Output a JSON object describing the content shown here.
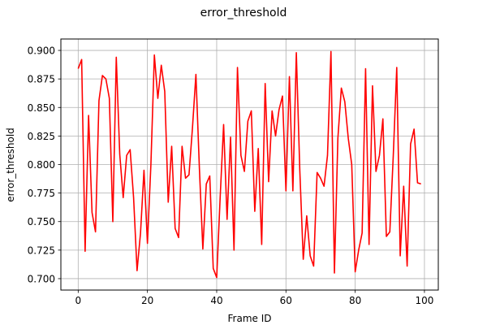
{
  "chart_data": {
    "type": "line",
    "title": "error_threshold",
    "xlabel": "Frame ID",
    "ylabel": "error_threshold",
    "xlim": [
      -5,
      104
    ],
    "ylim": [
      0.69,
      0.91
    ],
    "xticks": [
      0,
      20,
      40,
      60,
      80,
      100
    ],
    "xtick_labels": [
      "0",
      "20",
      "40",
      "60",
      "80",
      "100"
    ],
    "yticks": [
      0.7,
      0.725,
      0.75,
      0.775,
      0.8,
      0.825,
      0.85,
      0.875,
      0.9
    ],
    "ytick_labels": [
      "0.700",
      "0.725",
      "0.750",
      "0.775",
      "0.800",
      "0.825",
      "0.850",
      "0.875",
      "0.900"
    ],
    "grid": true,
    "legend": "none",
    "series": [
      {
        "color": "#ff0000",
        "x": [
          0,
          1,
          2,
          3,
          4,
          5,
          6,
          7,
          8,
          9,
          10,
          11,
          12,
          13,
          14,
          15,
          16,
          17,
          18,
          19,
          20,
          21,
          22,
          23,
          24,
          25,
          26,
          27,
          28,
          29,
          30,
          31,
          32,
          33,
          34,
          35,
          36,
          37,
          38,
          39,
          40,
          41,
          42,
          43,
          44,
          45,
          46,
          47,
          48,
          49,
          50,
          51,
          52,
          53,
          54,
          55,
          56,
          57,
          58,
          59,
          60,
          61,
          62,
          63,
          64,
          65,
          66,
          67,
          68,
          69,
          70,
          71,
          72,
          73,
          74,
          75,
          76,
          77,
          78,
          79,
          80,
          81,
          82,
          83,
          84,
          85,
          86,
          87,
          88,
          89,
          90,
          91,
          92,
          93,
          94,
          95,
          96,
          97,
          98,
          99
        ],
        "y": [
          0.884,
          0.892,
          0.724,
          0.843,
          0.758,
          0.741,
          0.856,
          0.878,
          0.875,
          0.858,
          0.75,
          0.894,
          0.809,
          0.771,
          0.808,
          0.813,
          0.771,
          0.707,
          0.74,
          0.795,
          0.731,
          0.8,
          0.896,
          0.858,
          0.887,
          0.864,
          0.767,
          0.816,
          0.744,
          0.736,
          0.816,
          0.788,
          0.791,
          0.832,
          0.879,
          0.797,
          0.726,
          0.783,
          0.79,
          0.709,
          0.701,
          0.771,
          0.835,
          0.752,
          0.824,
          0.725,
          0.885,
          0.808,
          0.794,
          0.838,
          0.847,
          0.759,
          0.814,
          0.73,
          0.871,
          0.785,
          0.847,
          0.825,
          0.848,
          0.86,
          0.777,
          0.877,
          0.777,
          0.898,
          0.795,
          0.717,
          0.755,
          0.72,
          0.711,
          0.793,
          0.788,
          0.781,
          0.808,
          0.899,
          0.705,
          0.823,
          0.867,
          0.855,
          0.823,
          0.8,
          0.706,
          0.725,
          0.74,
          0.884,
          0.73,
          0.869,
          0.794,
          0.808,
          0.84,
          0.737,
          0.741,
          0.808,
          0.885,
          0.72,
          0.781,
          0.711,
          0.818,
          0.831,
          0.784,
          0.783
        ]
      }
    ]
  }
}
